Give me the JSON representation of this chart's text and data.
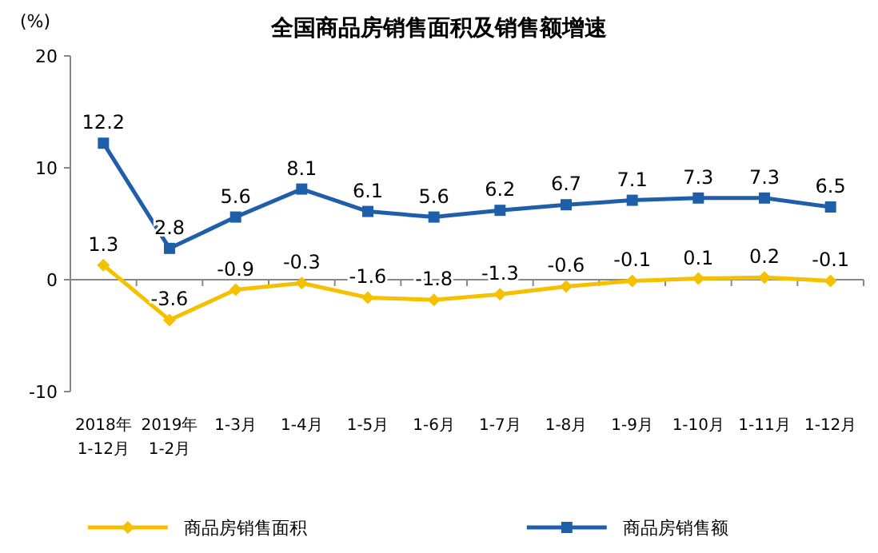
{
  "chart_data": {
    "type": "line",
    "title": "全国商品房销售面积及销售额增速",
    "ylabel": "(%)",
    "categories": [
      "2018年 1-12月",
      "2019年 1-2月",
      "1-3月",
      "1-4月",
      "1-5月",
      "1-6月",
      "1-7月",
      "1-8月",
      "1-9月",
      "1-10月",
      "1-11月",
      "1-12月"
    ],
    "series": [
      {
        "name": "商品房销售面积",
        "color": "#f5c000",
        "marker": "diamond",
        "values": [
          1.3,
          -3.6,
          -0.9,
          -0.3,
          -1.6,
          -1.8,
          -1.3,
          -0.6,
          -0.1,
          0.1,
          0.2,
          -0.1
        ]
      },
      {
        "name": "商品房销售额",
        "color": "#1f5ea8",
        "marker": "square",
        "values": [
          12.2,
          2.8,
          5.6,
          8.1,
          6.1,
          5.6,
          6.2,
          6.7,
          7.1,
          7.3,
          7.3,
          6.5
        ]
      }
    ],
    "ylim": [
      -10,
      20
    ],
    "yticks": [
      -10,
      0,
      10,
      20
    ],
    "data_labels": true,
    "legend": "bottom"
  }
}
